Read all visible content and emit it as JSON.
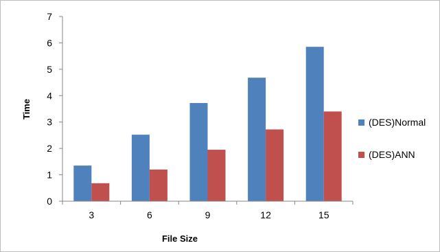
{
  "chart_data": {
    "type": "bar",
    "title": "",
    "xlabel": "File Size",
    "ylabel": "Time",
    "categories": [
      "3",
      "6",
      "9",
      "12",
      "15"
    ],
    "ylim": [
      0,
      7
    ],
    "yticks": [
      0,
      1,
      2,
      3,
      4,
      5,
      6,
      7
    ],
    "grid": false,
    "legend_position": "right",
    "series": [
      {
        "name": "(DES)Normal",
        "color": "#4f81bd",
        "values": [
          1.35,
          2.52,
          3.72,
          4.68,
          5.85
        ]
      },
      {
        "name": "(DES)ANN",
        "color": "#c0504d",
        "values": [
          0.68,
          1.2,
          1.95,
          2.72,
          3.4
        ]
      }
    ]
  }
}
